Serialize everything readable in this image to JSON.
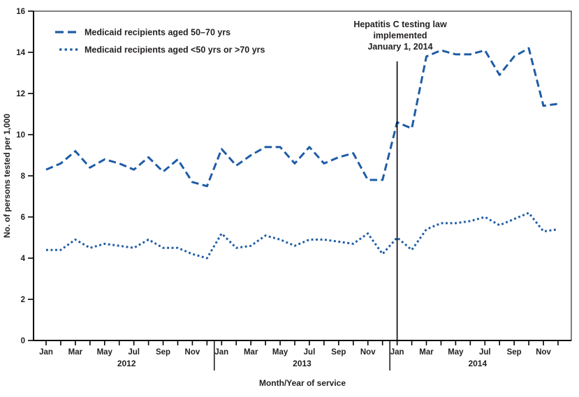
{
  "figure": {
    "background": "#ffffff",
    "line_color": "#1e5ca6",
    "axis_color": "#000000",
    "text_color": "#231f20"
  },
  "legend": {
    "items": [
      {
        "label": "Medicaid recipients aged 50–70 yrs",
        "style": "dashed"
      },
      {
        "label": "Medicaid recipients aged <50 yrs or >70 yrs",
        "style": "dotted"
      }
    ]
  },
  "annotation": {
    "lines": [
      "Hepatitis C testing law",
      "implemented",
      "January 1, 2014"
    ]
  },
  "chart_data": {
    "type": "line",
    "title": "",
    "xlabel": "Month/Year of service",
    "ylabel": "No. of persons tested per 1,000",
    "ylim": [
      0,
      16
    ],
    "ytick_step": 2,
    "grid": false,
    "legend_position": "top-left",
    "years": [
      "2012",
      "2013",
      "2014"
    ],
    "x": [
      "Jan 2012",
      "Feb 2012",
      "Mar 2012",
      "Apr 2012",
      "May 2012",
      "Jun 2012",
      "Jul 2012",
      "Aug 2012",
      "Sep 2012",
      "Oct 2012",
      "Nov 2012",
      "Dec 2012",
      "Jan 2013",
      "Feb 2013",
      "Mar 2013",
      "Apr 2013",
      "May 2013",
      "Jun 2013",
      "Jul 2013",
      "Aug 2013",
      "Sep 2013",
      "Oct 2013",
      "Nov 2013",
      "Dec 2013",
      "Jan 2014",
      "Feb 2014",
      "Mar 2014",
      "Apr 2014",
      "May 2014",
      "Jun 2014",
      "Jul 2014",
      "Aug 2014",
      "Sep 2014",
      "Oct 2014",
      "Nov 2014",
      "Dec 2014"
    ],
    "series": [
      {
        "name": "Medicaid recipients aged 50–70 yrs",
        "dash": "dashed",
        "values": [
          8.3,
          8.6,
          9.2,
          8.4,
          8.8,
          8.6,
          8.3,
          8.9,
          8.2,
          8.8,
          7.7,
          7.5,
          9.3,
          8.5,
          9.0,
          9.4,
          9.4,
          8.6,
          9.4,
          8.6,
          8.9,
          9.1,
          7.8,
          7.8,
          10.6,
          10.3,
          13.8,
          14.1,
          13.9,
          13.9,
          14.1,
          12.9,
          13.8,
          14.2,
          11.4,
          11.5
        ]
      },
      {
        "name": "Medicaid recipients aged <50 yrs or >70 yrs",
        "dash": "dotted",
        "values": [
          4.4,
          4.4,
          4.9,
          4.5,
          4.7,
          4.6,
          4.5,
          4.9,
          4.5,
          4.5,
          4.2,
          4.0,
          5.2,
          4.5,
          4.6,
          5.1,
          4.9,
          4.6,
          4.9,
          4.9,
          4.8,
          4.7,
          5.2,
          4.2,
          5.0,
          4.4,
          5.4,
          5.7,
          5.7,
          5.8,
          6.0,
          5.6,
          5.9,
          6.2,
          5.3,
          5.4
        ]
      }
    ],
    "vline": {
      "at_month": "Jan 2014",
      "month_index": 24
    }
  }
}
